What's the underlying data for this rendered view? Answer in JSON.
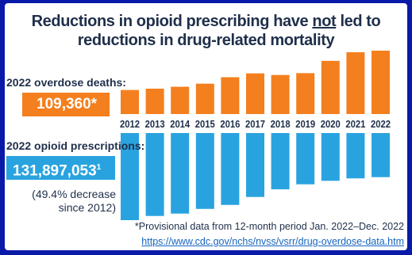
{
  "title": {
    "before": "Reductions in opioid prescribing have ",
    "emphasis": "not",
    "after": " led to",
    "line2": "reductions in drug-related mortality"
  },
  "deaths": {
    "label": "2022 overdose deaths:",
    "value": "109,360*"
  },
  "prescriptions": {
    "label": "2022 opioid prescriptions:",
    "value": "131,897,053",
    "footnote_marker": "1",
    "note_line1": "(49.4% decrease",
    "note_line2": "since 2012)"
  },
  "footnote": "*Provisional data from 12-month period Jan. 2022–Dec. 2022",
  "source_url": "https://www.cdc.gov/nchs/nvss/vsrr/drug-overdose-data.htm",
  "colors": {
    "deaths": "#f47f1e",
    "prescriptions": "#29a3df",
    "background": "#0a1aa8",
    "text": "#1f2f4a"
  },
  "chart_data": {
    "type": "bar",
    "categories": [
      "2012",
      "2013",
      "2014",
      "2015",
      "2016",
      "2017",
      "2018",
      "2019",
      "2020",
      "2021",
      "2022"
    ],
    "series": [
      {
        "name": "Overdose deaths",
        "values": [
          41500,
          43800,
          47100,
          52400,
          63600,
          70200,
          67400,
          70600,
          91800,
          106700,
          109360
        ]
      },
      {
        "name": "Opioid prescriptions",
        "values": [
          260500000,
          248000000,
          240900000,
          226800000,
          214900000,
          191200000,
          168200000,
          153300000,
          142800000,
          135600000,
          131897053
        ]
      }
    ],
    "layout": "diverging"
  }
}
